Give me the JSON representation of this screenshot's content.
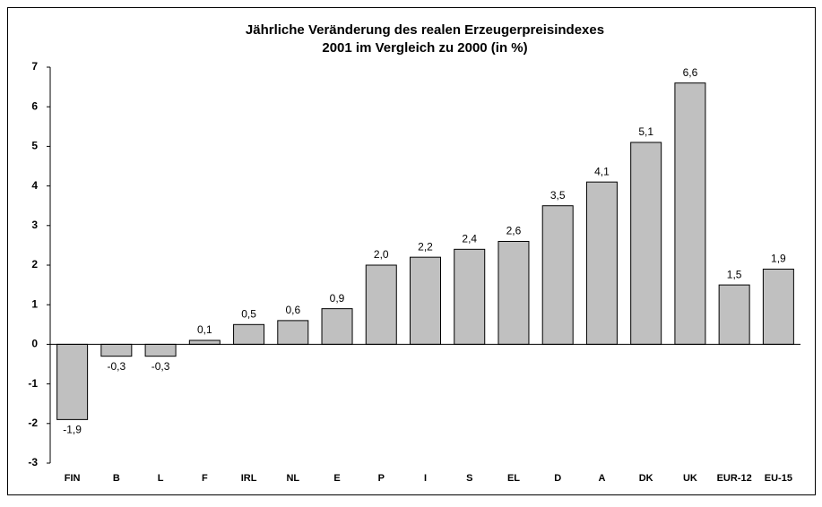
{
  "chart_data": {
    "type": "bar",
    "title": "Jährliche Veränderung des realen Erzeugerpreisindexes",
    "subtitle": "2001 im Vergleich zu 2000 (in %)",
    "categories": [
      "FIN",
      "B",
      "L",
      "F",
      "IRL",
      "NL",
      "E",
      "P",
      "I",
      "S",
      "EL",
      "D",
      "A",
      "DK",
      "UK",
      "EUR-12",
      "EU-15"
    ],
    "values": [
      -1.9,
      -0.3,
      -0.3,
      0.1,
      0.5,
      0.6,
      0.9,
      2.0,
      2.2,
      2.4,
      2.6,
      3.5,
      4.1,
      5.1,
      6.6,
      1.5,
      1.9
    ],
    "value_labels": [
      "-1,9",
      "-0,3",
      "-0,3",
      "0,1",
      "0,5",
      "0,6",
      "0,9",
      "2,0",
      "2,2",
      "2,4",
      "2,6",
      "3,5",
      "4,1",
      "5,1",
      "6,6",
      "1,5",
      "1,9"
    ],
    "color": "#c0c0c0",
    "ylim": [
      -3,
      7
    ],
    "yticks": [
      -3,
      -2,
      -1,
      0,
      1,
      2,
      3,
      4,
      5,
      6,
      7
    ],
    "grid": false
  }
}
